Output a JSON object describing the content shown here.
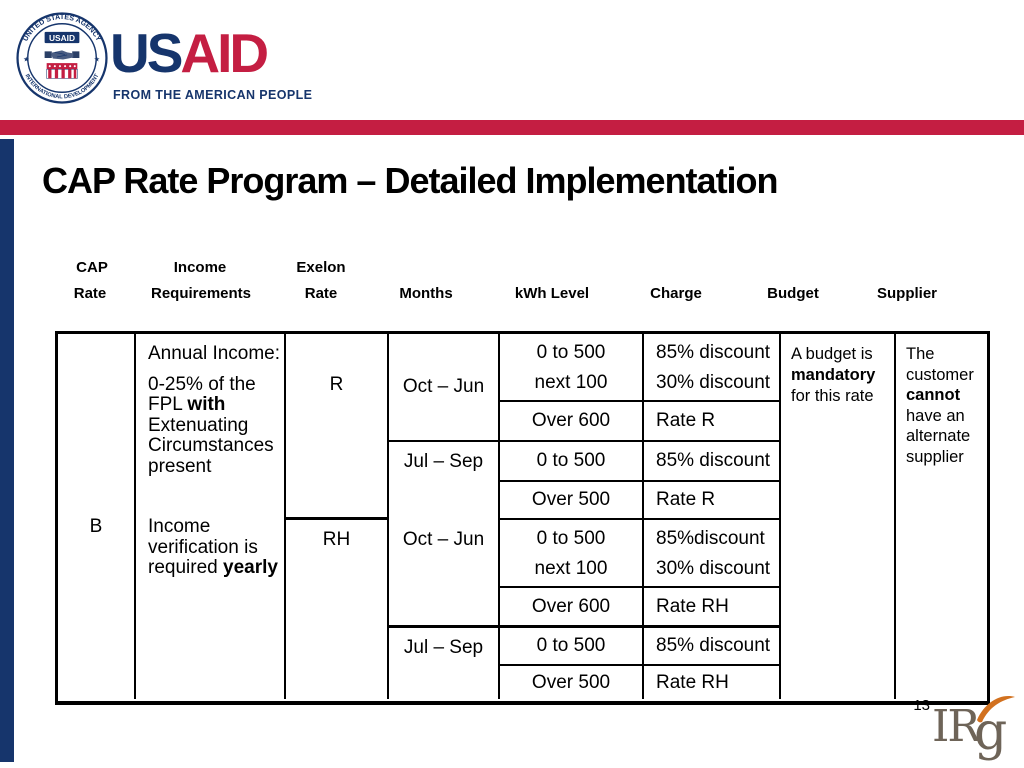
{
  "brand": {
    "seal": {
      "arc_top": "UNITED STATES AGENCY",
      "arc_bottom": "INTERNATIONAL DEVELOPMENT",
      "banner": "USAID",
      "star": "★"
    },
    "wordmark": {
      "us": "US",
      "aid": "AID"
    },
    "tagline": "FROM THE AMERICAN PEOPLE"
  },
  "slide": {
    "title": "CAP Rate Program – Detailed Implementation",
    "page_number": "13"
  },
  "table_headers": {
    "cap": {
      "l1": "CAP",
      "l2": "Rate"
    },
    "income": {
      "l1": "Income",
      "l2": "Requirements"
    },
    "exelon": {
      "l1": "Exelon",
      "l2": "Rate"
    },
    "months": "Months",
    "kwh": "kWh Level",
    "charge": "Charge",
    "budget": "Budget",
    "supplier": "Supplier"
  },
  "table": {
    "cap_rate": "B",
    "income": {
      "heading": "Annual Income:",
      "body": [
        {
          "t": "0-25% of the FPL "
        },
        {
          "t": "with",
          "b": true
        },
        {
          "t": " Extenuating Circumstances present"
        }
      ],
      "note": [
        {
          "t": "Income verification is required "
        },
        {
          "t": "yearly",
          "b": true
        }
      ]
    },
    "sections": [
      {
        "rate": "R",
        "periods": [
          {
            "months": "Oct – Jun",
            "rows": [
              {
                "kwh": [
                  "0 to 500",
                  "next 100"
                ],
                "charge": [
                  "85% discount",
                  "30% discount"
                ]
              },
              {
                "kwh": [
                  "Over 600"
                ],
                "charge": [
                  "Rate R"
                ]
              }
            ]
          },
          {
            "months": "Jul – Sep",
            "rows": [
              {
                "kwh": [
                  "0 to 500"
                ],
                "charge": [
                  "85% discount"
                ]
              },
              {
                "kwh": [
                  "Over 500"
                ],
                "charge": [
                  "Rate R"
                ]
              }
            ]
          }
        ]
      },
      {
        "rate": "RH",
        "periods": [
          {
            "months": "Oct – Jun",
            "rows": [
              {
                "kwh": [
                  "0 to 500",
                  "next 100"
                ],
                "charge": [
                  "85%discount",
                  "30% discount"
                ]
              },
              {
                "kwh": [
                  "Over 600"
                ],
                "charge": [
                  "Rate RH"
                ]
              }
            ]
          },
          {
            "months": "Jul – Sep",
            "rows": [
              {
                "kwh": [
                  "0 to 500"
                ],
                "charge": [
                  "85% discount"
                ]
              },
              {
                "kwh": [
                  "Over 500"
                ],
                "charge": [
                  "Rate RH"
                ]
              }
            ]
          }
        ]
      }
    ],
    "budget": [
      {
        "t": "A budget is "
      },
      {
        "t": "mandatory",
        "b": true
      },
      {
        "t": " for this rate"
      }
    ],
    "supplier": [
      {
        "t": "The customer "
      },
      {
        "t": "cannot",
        "b": true
      },
      {
        "t": " have an alternate supplier"
      }
    ]
  },
  "footer": {
    "logo_ir": "IR",
    "logo_g": "g"
  },
  "colors": {
    "navy": "#16356c",
    "red": "#c41e42",
    "orange": "#d2711f",
    "logo_gray": "#6e6458"
  }
}
